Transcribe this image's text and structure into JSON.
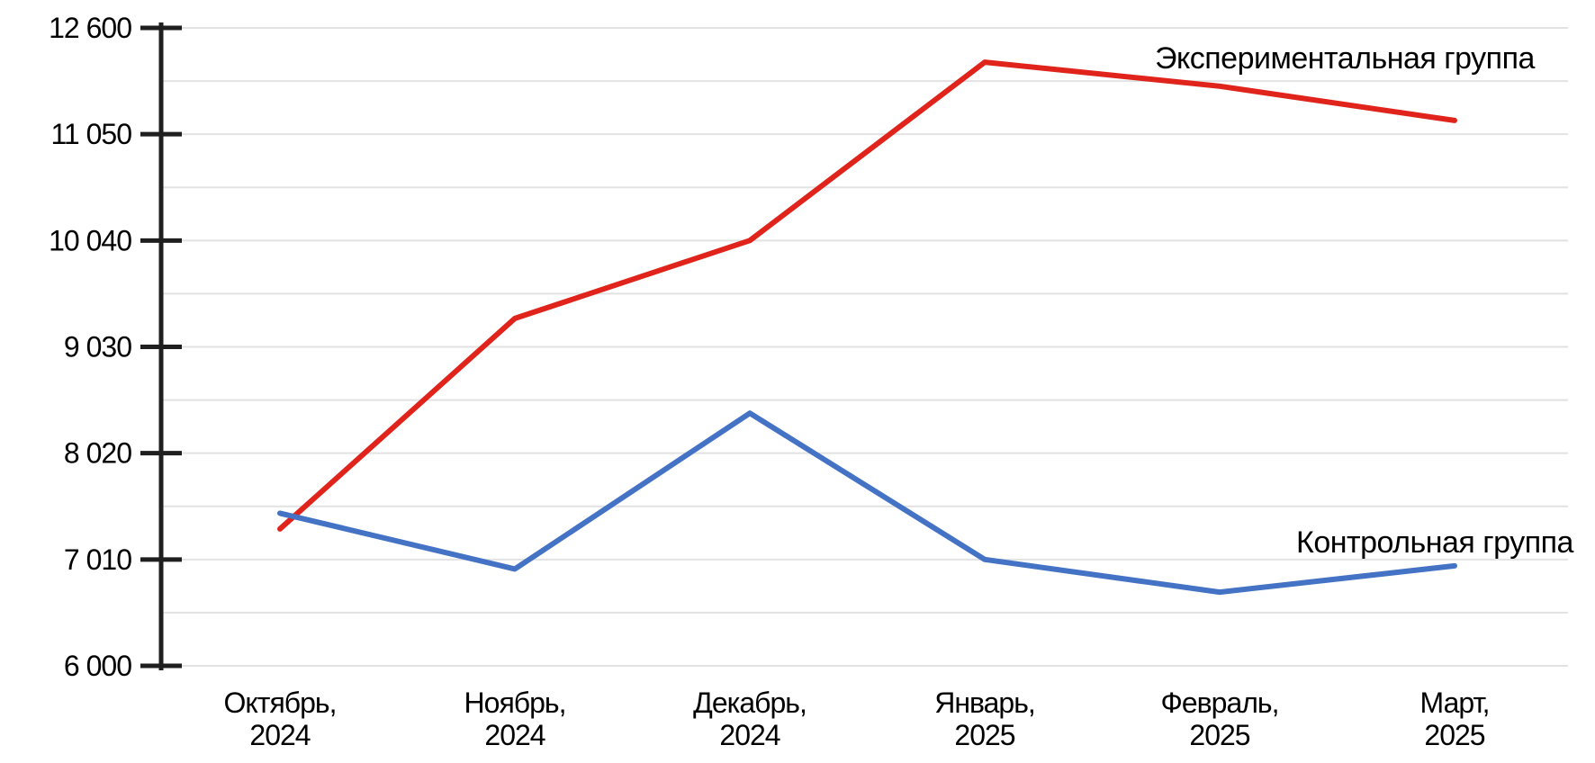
{
  "chart_data": {
    "type": "line",
    "title": "",
    "xlabel": "",
    "ylabel": "",
    "categories": [
      "Октябрь, 2024",
      "Ноябрь, 2024",
      "Декабрь, 2024",
      "Январь, 2025",
      "Февраль, 2025",
      "Март, 2025"
    ],
    "x_labels_two_line": [
      [
        "Октябрь,",
        "2024"
      ],
      [
        "Ноябрь,",
        "2024"
      ],
      [
        "Декабрь,",
        "2024"
      ],
      [
        "Январь,",
        "2025"
      ],
      [
        "Февраль,",
        "2025"
      ],
      [
        "Март,",
        "2025"
      ]
    ],
    "series": [
      {
        "name": "Экспериментальная группа",
        "color": "#e0241b",
        "values": [
          7300,
          9300,
          10040,
          12100,
          11750,
          11250
        ]
      },
      {
        "name": "Контрольная группа",
        "color": "#4472c4",
        "values": [
          7450,
          6920,
          8400,
          7010,
          6700,
          6950
        ]
      }
    ],
    "y_ticks": [
      6000,
      7010,
      8020,
      9030,
      10040,
      11050,
      12600
    ],
    "y_tick_labels": [
      "6 000",
      "7 010",
      "8 020",
      "9 030",
      "10 040",
      "11 050",
      "12 600"
    ],
    "ylim": [
      6000,
      12600
    ],
    "grid": "horizontal, major and minor lines",
    "legend_position": "inline labels at right ends of lines"
  },
  "colors": {
    "background": "#ffffff",
    "grid_line": "#e2e2e2",
    "axis": "#1f1f1f",
    "text": "#000000",
    "experimental_line": "#e0241b",
    "control_line": "#4472c4"
  }
}
